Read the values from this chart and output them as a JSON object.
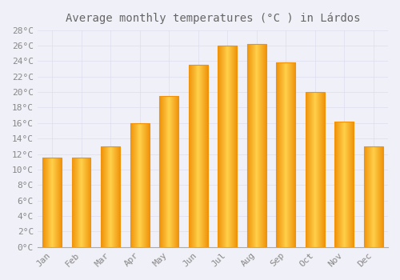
{
  "title": "Average monthly temperatures (°C ) in Lárdos",
  "months": [
    "Jan",
    "Feb",
    "Mar",
    "Apr",
    "May",
    "Jun",
    "Jul",
    "Aug",
    "Sep",
    "Oct",
    "Nov",
    "Dec"
  ],
  "values": [
    11.5,
    11.5,
    13.0,
    16.0,
    19.5,
    23.5,
    26.0,
    26.2,
    23.8,
    20.0,
    16.2,
    13.0
  ],
  "bar_color_center": "#FFD04A",
  "bar_color_edge": "#F0920A",
  "background_color": "#F0F0F8",
  "plot_bg_color": "#F0F0F8",
  "grid_color": "#DDDDEE",
  "text_color": "#888888",
  "title_color": "#666666",
  "ylim": [
    0,
    28
  ],
  "ytick_step": 2,
  "title_fontsize": 10,
  "tick_fontsize": 8,
  "font_family": "monospace"
}
